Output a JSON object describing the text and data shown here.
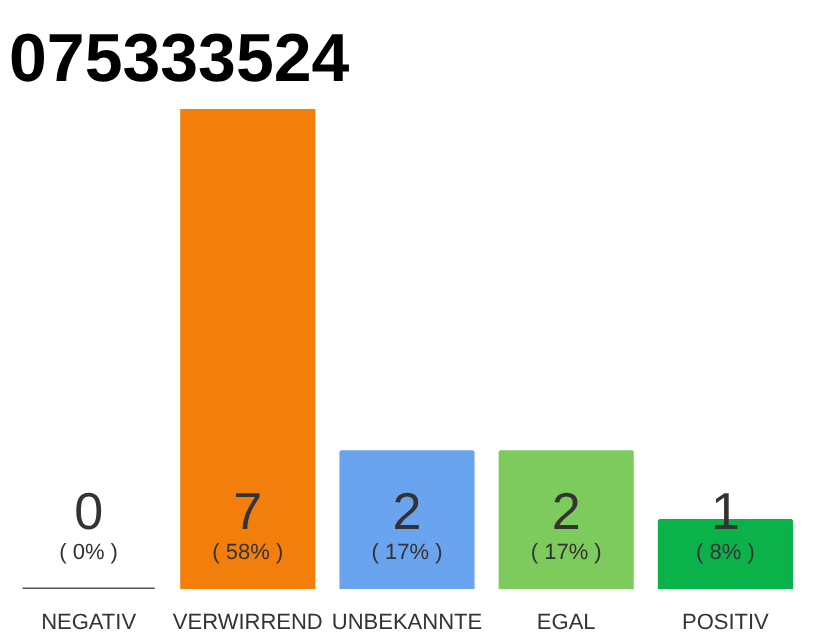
{
  "chart_data": {
    "type": "bar",
    "title": "075333524",
    "categories": [
      "NEGATIV",
      "VERWIRREND",
      "UNBEKANNTE",
      "EGAL",
      "POSITIV"
    ],
    "values": [
      0,
      7,
      2,
      2,
      1
    ],
    "colors": [
      "#555555",
      "#f27f0c",
      "#6aa4ee",
      "#7ccb5c",
      "#0bb24a"
    ],
    "ylim": [
      0,
      7
    ],
    "value_labels": [
      "0\n( 0% )",
      "7\n( 58% )",
      "2\n( 17% )",
      "2\n( 17% )",
      "1\n( 8% )"
    ]
  }
}
